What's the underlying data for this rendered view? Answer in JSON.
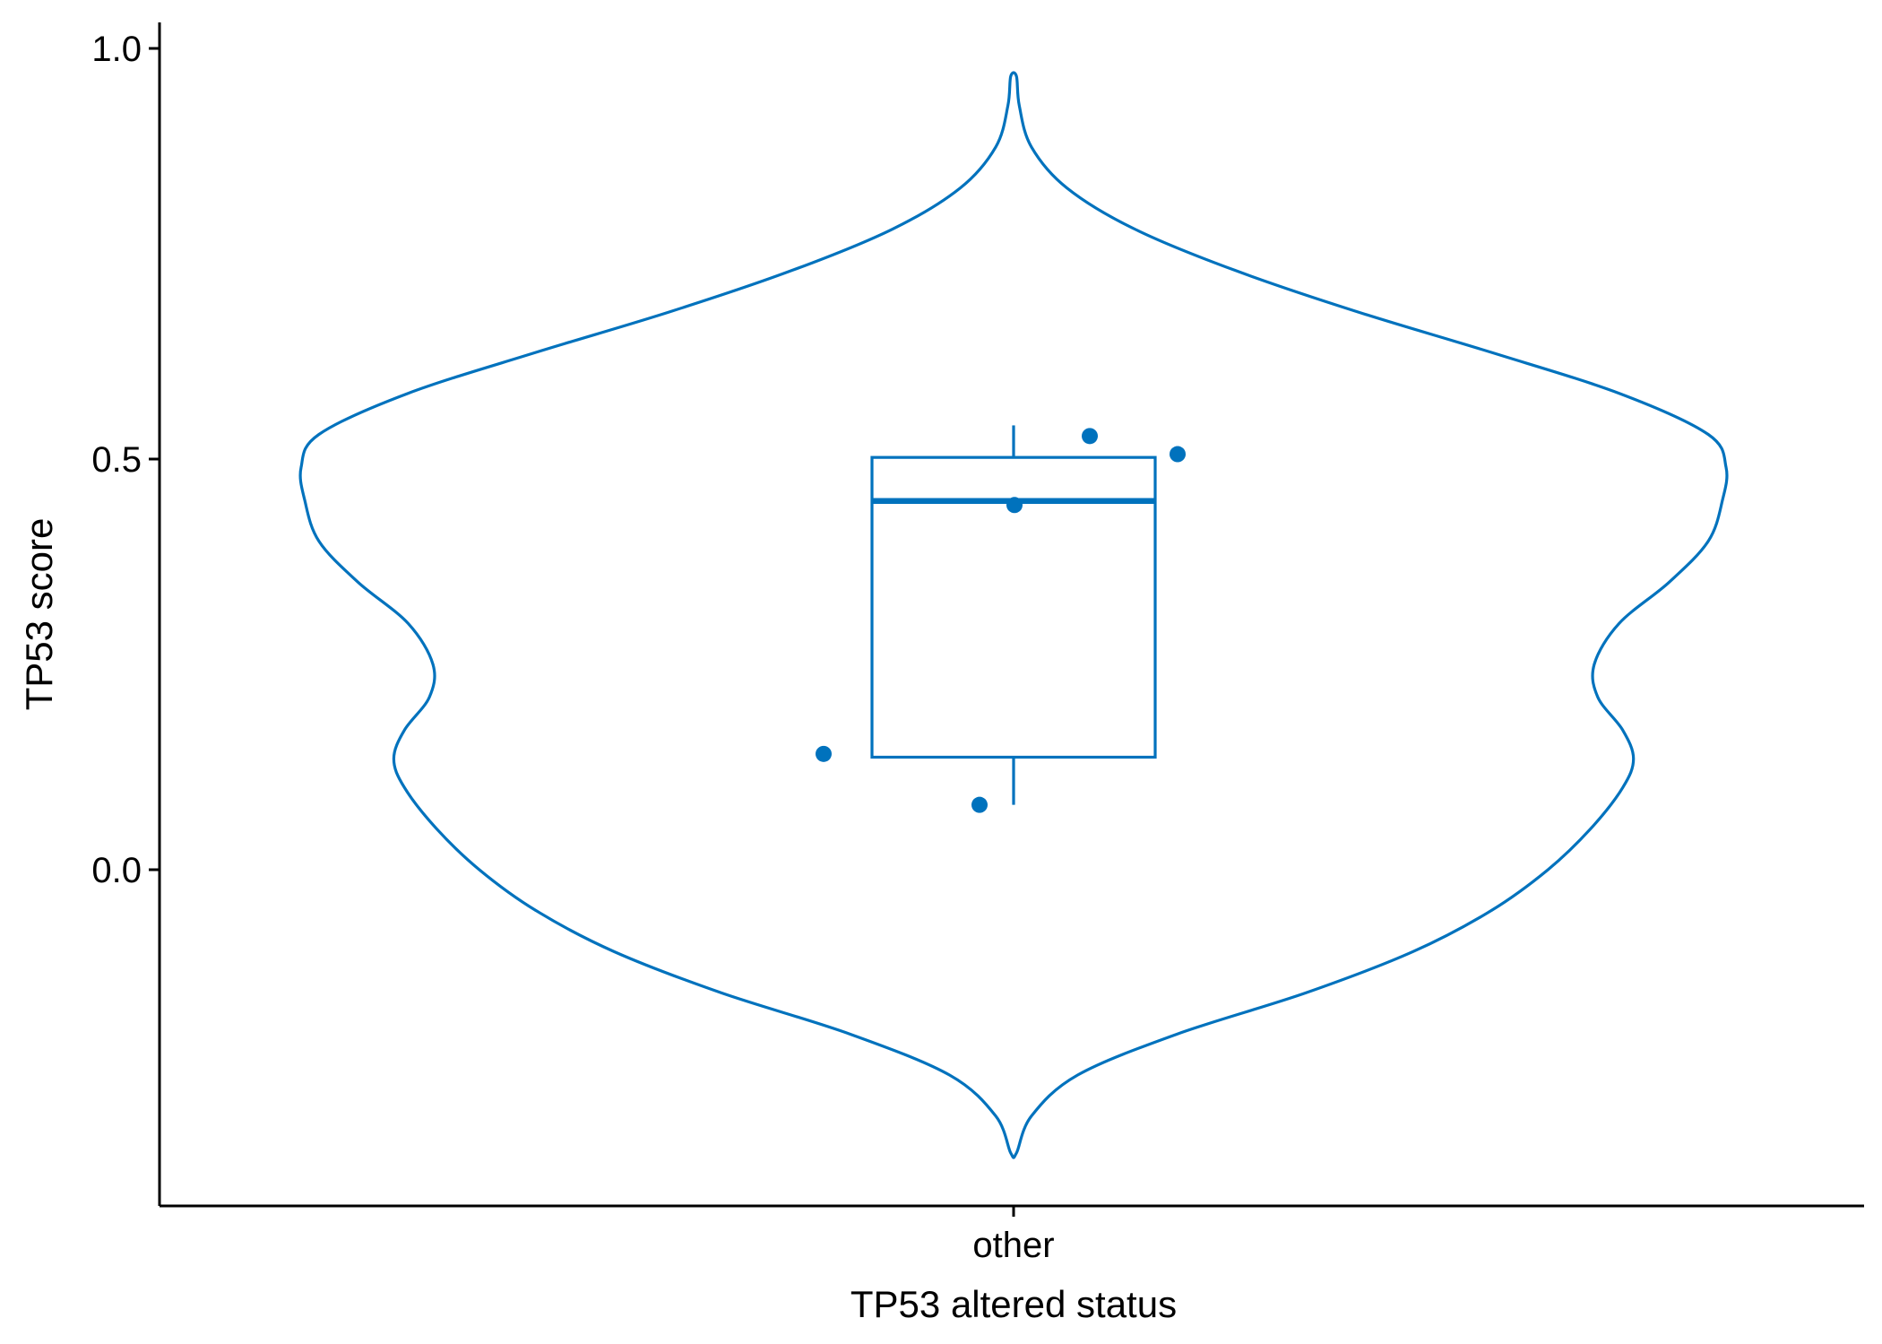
{
  "chart_data": {
    "type": "violin",
    "xlabel": "TP53 altered status",
    "ylabel": "TP53 score",
    "categories": [
      "other"
    ],
    "ylim": [
      -0.41,
      1.03
    ],
    "yticks": [
      0.0,
      0.5,
      1.0
    ],
    "ytick_labels": [
      "0.0",
      "0.5",
      "1.0"
    ],
    "color": "#0072BD",
    "grid": false,
    "legend": "none",
    "points": [
      {
        "x": "other",
        "y": 0.528
      },
      {
        "x": "other",
        "y": 0.506
      },
      {
        "x": "other",
        "y": 0.444
      },
      {
        "x": "other",
        "y": 0.141
      },
      {
        "x": "other",
        "y": 0.079
      }
    ],
    "box": {
      "q1": 0.137,
      "median": 0.449,
      "q3": 0.502,
      "whisker_low": 0.079,
      "whisker_high": 0.541
    },
    "violin": {
      "y_min": -0.345,
      "y_max": 0.966,
      "density": [
        {
          "y": -0.345,
          "w": 0.004
        },
        {
          "y": -0.3,
          "w": 0.025
        },
        {
          "y": -0.25,
          "w": 0.09
        },
        {
          "y": -0.2,
          "w": 0.23
        },
        {
          "y": -0.15,
          "w": 0.41
        },
        {
          "y": -0.1,
          "w": 0.56
        },
        {
          "y": -0.05,
          "w": 0.67
        },
        {
          "y": 0.0,
          "w": 0.75
        },
        {
          "y": 0.05,
          "w": 0.81
        },
        {
          "y": 0.1,
          "w": 0.855
        },
        {
          "y": 0.135,
          "w": 0.87
        },
        {
          "y": 0.17,
          "w": 0.855
        },
        {
          "y": 0.21,
          "w": 0.82
        },
        {
          "y": 0.25,
          "w": 0.815
        },
        {
          "y": 0.3,
          "w": 0.85
        },
        {
          "y": 0.35,
          "w": 0.92
        },
        {
          "y": 0.4,
          "w": 0.975
        },
        {
          "y": 0.45,
          "w": 0.995
        },
        {
          "y": 0.49,
          "w": 1.0
        },
        {
          "y": 0.53,
          "w": 0.975
        },
        {
          "y": 0.58,
          "w": 0.85
        },
        {
          "y": 0.63,
          "w": 0.67
        },
        {
          "y": 0.68,
          "w": 0.48
        },
        {
          "y": 0.73,
          "w": 0.31
        },
        {
          "y": 0.78,
          "w": 0.17
        },
        {
          "y": 0.83,
          "w": 0.075
        },
        {
          "y": 0.88,
          "w": 0.025
        },
        {
          "y": 0.93,
          "w": 0.008
        },
        {
          "y": 0.966,
          "w": 0.004
        }
      ]
    }
  }
}
